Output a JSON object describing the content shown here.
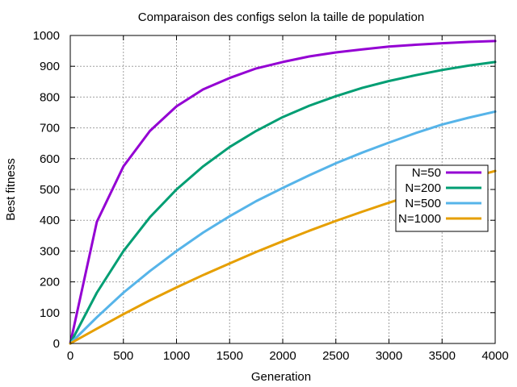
{
  "chart_data": {
    "type": "line",
    "title": "Comparaison des configs selon la taille de population",
    "xlabel": "Generation",
    "ylabel": "Best fitness",
    "xlim": [
      0,
      4000
    ],
    "ylim": [
      0,
      1000
    ],
    "xticks": [
      0,
      500,
      1000,
      1500,
      2000,
      2500,
      3000,
      3500,
      4000
    ],
    "yticks": [
      0,
      100,
      200,
      300,
      400,
      500,
      600,
      700,
      800,
      900,
      1000
    ],
    "grid": true,
    "legend_position": "right",
    "x": [
      0,
      250,
      500,
      750,
      1000,
      1250,
      1500,
      1750,
      2000,
      2250,
      2500,
      2750,
      3000,
      3250,
      3500,
      3750,
      4000
    ],
    "series": [
      {
        "name": "N=50",
        "color": "#9400d3",
        "values": [
          0,
          395,
          575,
          690,
          770,
          825,
          862,
          893,
          914,
          932,
          945,
          955,
          964,
          970,
          975,
          979,
          982
        ]
      },
      {
        "name": "N=200",
        "color": "#009e73",
        "values": [
          0,
          165,
          300,
          410,
          500,
          575,
          638,
          690,
          735,
          772,
          803,
          830,
          852,
          871,
          888,
          902,
          914
        ]
      },
      {
        "name": "N=500",
        "color": "#56b4e9",
        "values": [
          0,
          85,
          165,
          235,
          300,
          360,
          413,
          462,
          505,
          546,
          585,
          620,
          652,
          683,
          711,
          733,
          753
        ]
      },
      {
        "name": "N=1000",
        "color": "#e69f00",
        "values": [
          0,
          48,
          95,
          140,
          182,
          222,
          260,
          297,
          332,
          366,
          398,
          428,
          457,
          485,
          512,
          537,
          560
        ]
      }
    ]
  }
}
